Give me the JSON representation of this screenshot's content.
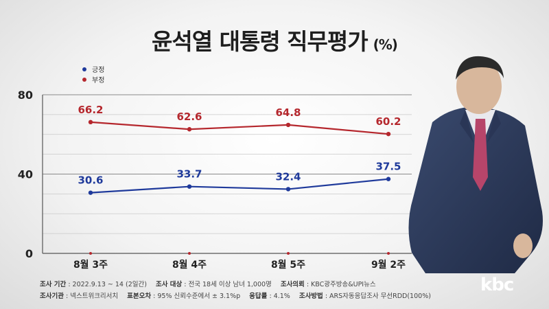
{
  "title": "윤석열 대통령 직무평가",
  "title_unit": "(%)",
  "colors": {
    "positive": "#1f3a9b",
    "negative": "#b5272d",
    "grid": "#8a8a8a"
  },
  "chart_data": {
    "type": "line",
    "categories": [
      "8월 3주",
      "8월 4주",
      "8월 5주",
      "9월 2주"
    ],
    "series": [
      {
        "name": "긍정",
        "values": [
          30.6,
          33.7,
          32.4,
          37.5
        ],
        "value_labels": [
          "30.6",
          "33.7",
          "32.4",
          "37.5"
        ]
      },
      {
        "name": "부정",
        "values": [
          66.2,
          62.6,
          64.8,
          60.2
        ],
        "value_labels": [
          "66.2",
          "62.6",
          "64.8",
          "60.2"
        ]
      }
    ],
    "y_ticks": [
      "0",
      "40",
      "80"
    ],
    "ylim": [
      0,
      80
    ],
    "legend_position": "top-left"
  },
  "footer": {
    "period_label": "조사 기간",
    "period_value": ": 2022.9.13 ~ 14 (2일간)",
    "target_label": "조사 대상",
    "target_value": ": 전국 18세 이상 남녀 1,000명",
    "client_label": "조사의뢰",
    "client_value": ": KBC광주방송&UPI뉴스",
    "org_label": "조사기관",
    "org_value": ": 넥스트위크리서치",
    "error_label": "표본오차",
    "error_value": ": 95% 신뢰수준에서 ± 3.1%p",
    "response_label": "응답률",
    "response_value": ": 4.1%",
    "method_label": "조사방법",
    "method_value": ": ARS자동응답조사 무선RDD(100%)"
  },
  "logo": "kbc"
}
